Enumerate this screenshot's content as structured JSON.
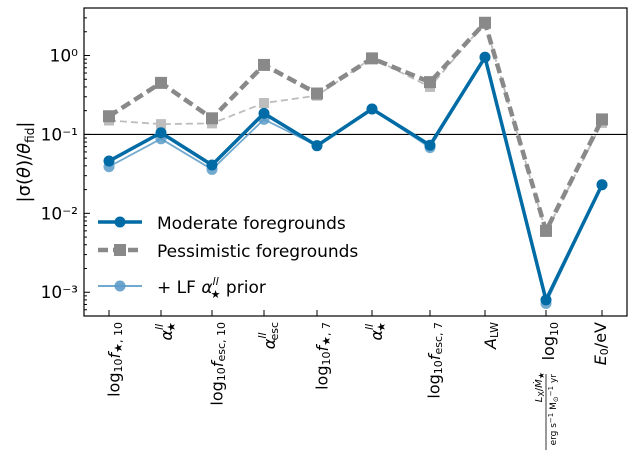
{
  "chart_data": {
    "type": "line",
    "ylabel": "|σ(θ)/θ_fid|",
    "yscale": "log",
    "ylim": [
      0.0005,
      4.0
    ],
    "yticks": [
      {
        "value": 0.001,
        "label": "10⁻³"
      },
      {
        "value": 0.01,
        "label": "10⁻²"
      },
      {
        "value": 0.1,
        "label": "10⁻¹"
      },
      {
        "value": 1,
        "label": "10⁰"
      }
    ],
    "reference_line": 0.1,
    "grid": false,
    "legend_position": "lower-left",
    "categories": [
      "log10 f*,10",
      "α*^ll",
      "log10 f_esc,10",
      "α_esc^ll",
      "log10 f*,7",
      "α*^ll",
      "log10 f_esc,7",
      "A_LW",
      "log10 L_X/Ṁ*",
      "E0/eV"
    ],
    "series": [
      {
        "name": "Moderate foregrounds",
        "color": "#006ba4",
        "marker": "circle",
        "style": "solid",
        "values": [
          0.046,
          0.105,
          0.041,
          0.185,
          0.072,
          0.21,
          0.073,
          0.95,
          0.0008,
          0.023
        ]
      },
      {
        "name": "Pessimistic foregrounds",
        "color": "#898989",
        "marker": "square",
        "style": "dashed",
        "values": [
          0.17,
          0.45,
          0.16,
          0.76,
          0.33,
          0.92,
          0.46,
          2.6,
          0.006,
          0.155
        ]
      },
      {
        "name": "+ LF α*^ll prior",
        "color": "#5b9bc8",
        "marker": "circle",
        "style": "solid",
        "values": [
          0.039,
          0.088,
          0.036,
          0.155,
          0.072,
          0.21,
          0.068,
          0.95,
          0.00072,
          0.023
        ]
      },
      {
        "name": "",
        "color": "#bdbdbd",
        "marker": "square",
        "style": "dashed",
        "values": [
          0.15,
          0.135,
          0.138,
          0.25,
          0.31,
          0.93,
          0.4,
          2.6,
          0.0058,
          0.14
        ]
      }
    ]
  }
}
